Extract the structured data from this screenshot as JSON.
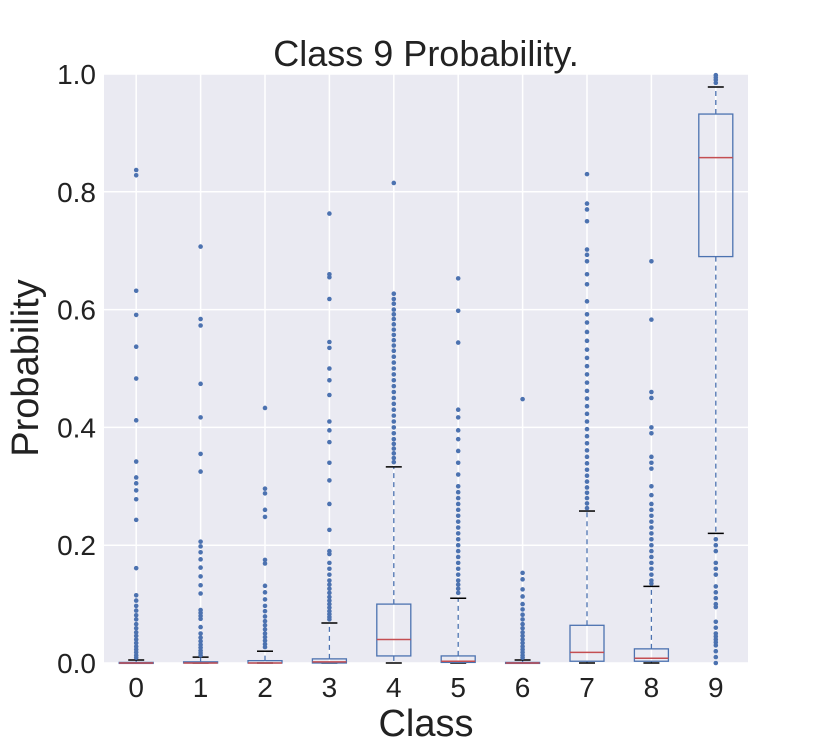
{
  "chart_data": {
    "type": "box",
    "title": "Class 9 Probability.",
    "xlabel": "Class",
    "ylabel": "Probability",
    "ylim": [
      0.0,
      1.0
    ],
    "yticks": [
      "0.0",
      "0.2",
      "0.4",
      "0.6",
      "0.8",
      "1.0"
    ],
    "categories": [
      "0",
      "1",
      "2",
      "3",
      "4",
      "5",
      "6",
      "7",
      "8",
      "9"
    ],
    "grid": true,
    "colors": {
      "box": "#4c72b0",
      "median": "#c44e52",
      "flier": "#4c72b0",
      "background": "#eaeaf2",
      "grid": "#ffffff"
    },
    "boxes": [
      {
        "q1": 0.0,
        "median": 0.0,
        "q3": 0.001,
        "whisker_low": 0.0,
        "whisker_high": 0.005,
        "fliers": [
          0.837,
          0.828,
          0.632,
          0.591,
          0.537,
          0.483,
          0.412,
          0.342,
          0.315,
          0.305,
          0.293,
          0.278,
          0.243,
          0.161,
          0.115,
          0.106,
          0.097,
          0.089,
          0.081,
          0.074,
          0.066,
          0.059,
          0.052,
          0.046,
          0.04,
          0.034,
          0.028,
          0.023,
          0.018,
          0.013,
          0.009
        ]
      },
      {
        "q1": 0.0,
        "median": 0.0,
        "q3": 0.002,
        "whisker_low": 0.0,
        "whisker_high": 0.01,
        "fliers": [
          0.707,
          0.584,
          0.573,
          0.474,
          0.417,
          0.355,
          0.325,
          0.206,
          0.198,
          0.188,
          0.176,
          0.162,
          0.147,
          0.132,
          0.118,
          0.09,
          0.085,
          0.08,
          0.075,
          0.061,
          0.05,
          0.043,
          0.037,
          0.031,
          0.026,
          0.021,
          0.017,
          0.013
        ]
      },
      {
        "q1": 0.0,
        "median": 0.0,
        "q3": 0.004,
        "whisker_low": 0.0,
        "whisker_high": 0.02,
        "fliers": [
          0.433,
          0.296,
          0.288,
          0.26,
          0.248,
          0.175,
          0.169,
          0.131,
          0.12,
          0.108,
          0.097,
          0.088,
          0.079,
          0.071,
          0.064,
          0.057,
          0.05,
          0.044,
          0.038,
          0.032,
          0.027
        ]
      },
      {
        "q1": 0.0,
        "median": 0.002,
        "q3": 0.007,
        "whisker_low": 0.0,
        "whisker_high": 0.068,
        "fliers": [
          0.763,
          0.66,
          0.655,
          0.618,
          0.545,
          0.535,
          0.5,
          0.48,
          0.455,
          0.41,
          0.395,
          0.375,
          0.34,
          0.31,
          0.27,
          0.226,
          0.19,
          0.185,
          0.17,
          0.16,
          0.15,
          0.14,
          0.133,
          0.126,
          0.119,
          0.112,
          0.106,
          0.1,
          0.094,
          0.088,
          0.083,
          0.078,
          0.074
        ]
      },
      {
        "q1": 0.012,
        "median": 0.04,
        "q3": 0.1,
        "whisker_low": 0.0,
        "whisker_high": 0.333,
        "fliers": [
          0.815,
          0.627,
          0.618,
          0.61,
          0.6,
          0.592,
          0.584,
          0.575,
          0.566,
          0.557,
          0.548,
          0.539,
          0.53,
          0.52,
          0.51,
          0.5,
          0.49,
          0.48,
          0.47,
          0.46,
          0.45,
          0.44,
          0.43,
          0.42,
          0.41,
          0.4,
          0.39,
          0.38,
          0.372,
          0.364,
          0.356,
          0.348,
          0.341
        ]
      },
      {
        "q1": 0.001,
        "median": 0.003,
        "q3": 0.012,
        "whisker_low": 0.0,
        "whisker_high": 0.11,
        "fliers": [
          0.653,
          0.598,
          0.544,
          0.43,
          0.417,
          0.395,
          0.38,
          0.36,
          0.34,
          0.32,
          0.3,
          0.29,
          0.28,
          0.27,
          0.26,
          0.25,
          0.24,
          0.23,
          0.22,
          0.21,
          0.2,
          0.19,
          0.18,
          0.17,
          0.16,
          0.15,
          0.14,
          0.133,
          0.126,
          0.119
        ]
      },
      {
        "q1": 0.0,
        "median": 0.0,
        "q3": 0.001,
        "whisker_low": 0.0,
        "whisker_high": 0.005,
        "fliers": [
          0.448,
          0.153,
          0.142,
          0.125,
          0.113,
          0.1,
          0.091,
          0.082,
          0.074,
          0.066,
          0.059,
          0.052,
          0.046,
          0.04,
          0.034,
          0.028,
          0.023,
          0.018,
          0.013,
          0.009
        ]
      },
      {
        "q1": 0.003,
        "median": 0.018,
        "q3": 0.064,
        "whisker_low": 0.0,
        "whisker_high": 0.258,
        "fliers": [
          0.83,
          0.78,
          0.77,
          0.75,
          0.702,
          0.693,
          0.682,
          0.66,
          0.643,
          0.614,
          0.592,
          0.578,
          0.562,
          0.547,
          0.532,
          0.518,
          0.504,
          0.49,
          0.476,
          0.462,
          0.449,
          0.436,
          0.423,
          0.41,
          0.397,
          0.385,
          0.373,
          0.361,
          0.35,
          0.339,
          0.328,
          0.318,
          0.308,
          0.298,
          0.289,
          0.28,
          0.271,
          0.263
        ]
      },
      {
        "q1": 0.003,
        "median": 0.008,
        "q3": 0.024,
        "whisker_low": 0.0,
        "whisker_high": 0.13,
        "fliers": [
          0.682,
          0.583,
          0.46,
          0.45,
          0.4,
          0.39,
          0.35,
          0.34,
          0.33,
          0.3,
          0.285,
          0.27,
          0.26,
          0.25,
          0.24,
          0.23,
          0.22,
          0.21,
          0.2,
          0.19,
          0.18,
          0.17,
          0.16,
          0.15,
          0.14,
          0.135
        ]
      },
      {
        "q1": 0.69,
        "median": 0.858,
        "q3": 0.932,
        "whisker_low": 0.22,
        "whisker_high": 0.978,
        "fliers": [
          0.998,
          0.994,
          0.99,
          0.985,
          0.21,
          0.2,
          0.19,
          0.17,
          0.16,
          0.15,
          0.13,
          0.12,
          0.11,
          0.1,
          0.095,
          0.07,
          0.06,
          0.05,
          0.045,
          0.04,
          0.035,
          0.03,
          0.02,
          0.01,
          0.0
        ]
      }
    ]
  }
}
